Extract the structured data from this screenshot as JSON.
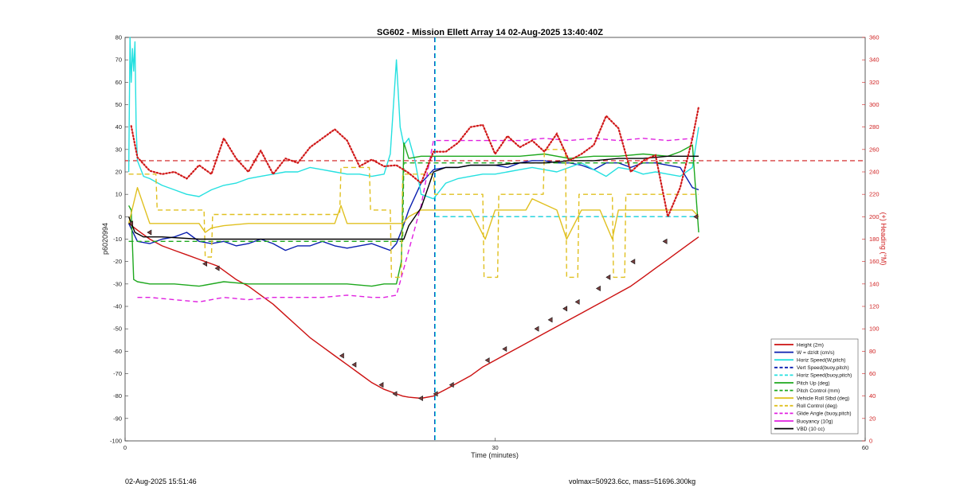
{
  "footer": {
    "left": "02-Aug-2025 15:51:46",
    "right": "volmax=50923.6cc, mass=51696.300kg"
  },
  "chart_data": {
    "type": "line",
    "title": "SG602 - Mission Ellett Array 14 02-Aug-2025 13:40:40Z",
    "xlabel": "Time (minutes)",
    "ylabel": "p6020994",
    "y2label": "(+) Heading (°M)",
    "xlim": [
      0,
      60
    ],
    "ylim": [
      -100,
      80
    ],
    "y2lim": [
      0,
      360
    ],
    "xticks": [
      0,
      30,
      60
    ],
    "yticks": [
      80,
      70,
      60,
      50,
      40,
      30,
      20,
      10,
      0,
      -10,
      -20,
      -30,
      -40,
      -50,
      -60,
      -70,
      -80,
      -90,
      -100
    ],
    "y2ticks": [
      360,
      340,
      320,
      300,
      280,
      260,
      240,
      220,
      200,
      180,
      160,
      140,
      120,
      100,
      80,
      60,
      40,
      20,
      0
    ],
    "grid": false,
    "legend_position": "bottom-right",
    "apogee_x": 25.1,
    "series": [
      {
        "name": "Height (2m)",
        "color": "#cc1111",
        "style": "solid",
        "x": [
          0.3,
          1,
          2,
          3,
          4,
          5,
          6,
          7,
          7.5,
          8,
          9,
          10,
          11,
          12,
          13,
          14,
          15,
          16,
          17,
          18,
          19,
          20,
          21,
          22,
          22.5,
          23,
          24,
          25,
          25.3,
          26,
          27,
          28,
          29,
          30,
          31,
          32,
          33,
          34,
          35,
          36,
          37,
          38,
          39,
          40,
          41,
          42,
          43,
          44,
          45,
          46,
          46.5
        ],
        "y": [
          -3,
          -6,
          -10,
          -13,
          -15,
          -17,
          -19,
          -21,
          -22,
          -24,
          -28,
          -31,
          -35,
          -39,
          -44,
          -49,
          -54,
          -58,
          -62,
          -66,
          -70,
          -74,
          -77,
          -79,
          -80,
          -80.5,
          -81,
          -80,
          -79,
          -77,
          -74,
          -71,
          -67,
          -64,
          -61,
          -58,
          -55,
          -52,
          -49,
          -46,
          -43,
          -40,
          -37,
          -34,
          -31,
          -27,
          -23,
          -19,
          -15,
          -11,
          -9
        ]
      },
      {
        "name": "W = dz/dt (cm/s)",
        "color": "#0a1fb0",
        "style": "solid",
        "x": [
          0.3,
          1,
          2,
          3,
          4,
          5,
          6,
          7,
          8,
          9,
          10,
          11,
          12,
          13,
          14,
          15,
          16,
          17,
          18,
          19,
          20,
          21,
          21.5,
          22,
          22.5,
          23,
          24,
          25,
          26,
          27,
          28,
          29,
          30,
          31,
          32,
          33,
          34,
          35,
          36,
          37,
          38,
          39,
          40,
          41,
          42,
          43,
          44,
          45,
          46,
          46.5
        ],
        "y": [
          -3,
          -11,
          -12,
          -10,
          -9,
          -7,
          -11,
          -12,
          -11,
          -13,
          -12,
          -10,
          -12,
          -15,
          -13,
          -13,
          -11,
          -13,
          -14,
          -13,
          -12,
          -14,
          -15,
          -12,
          -5,
          3,
          15,
          21,
          22,
          22,
          23,
          23,
          23,
          22,
          24,
          25,
          25,
          24,
          24,
          23,
          21,
          24,
          24,
          22,
          24,
          24,
          23,
          22,
          13,
          12
        ]
      },
      {
        "name": "Horiz Speed(W,pitch)",
        "color": "#25e0e0",
        "style": "solid",
        "x": [
          0.3,
          0.4,
          0.5,
          0.6,
          0.7,
          0.8,
          0.9,
          1.0,
          1.5,
          2,
          3,
          4,
          5,
          6,
          7,
          8,
          9,
          10,
          11,
          12,
          13,
          14,
          15,
          16,
          17,
          18,
          19,
          20,
          21,
          21.5,
          22,
          22.3,
          22.6,
          23,
          23.5,
          24,
          25,
          26,
          27,
          28,
          29,
          30,
          31,
          32,
          33,
          34,
          35,
          36,
          37,
          38,
          39,
          40,
          41,
          42,
          43,
          44,
          45,
          46,
          46.5
        ],
        "y": [
          20,
          80,
          60,
          75,
          65,
          78,
          40,
          25,
          18,
          17,
          14,
          12,
          10,
          9,
          12,
          14,
          15,
          17,
          18,
          19,
          20,
          20,
          22,
          21,
          20,
          19,
          19,
          18,
          19,
          28,
          70,
          40,
          32,
          35,
          25,
          10,
          8,
          15,
          17,
          18,
          19,
          19,
          20,
          21,
          22,
          21,
          20,
          22,
          24,
          21,
          18,
          22,
          21,
          19,
          20,
          19,
          18,
          22,
          40
        ]
      },
      {
        "name": "Vert Speed(buoy,pitch)",
        "color": "#0a1fb0",
        "style": "dashed",
        "x": [
          25.1,
          46.5
        ],
        "y": [
          0,
          0
        ]
      },
      {
        "name": "Horiz Speed(buoy,pitch)",
        "color": "#25e0e0",
        "style": "dashed",
        "x": [
          25.1,
          46.5
        ],
        "y": [
          0,
          0
        ]
      },
      {
        "name": "Pitch Up (deg)",
        "color": "#1ea81e",
        "style": "solid",
        "x": [
          0.3,
          0.5,
          0.7,
          1.0,
          2,
          4,
          6,
          8,
          10,
          12,
          14,
          16,
          18,
          20,
          21,
          22,
          22.4,
          22.6,
          23,
          24,
          25,
          26,
          28,
          30,
          32,
          34,
          36,
          38,
          40,
          42,
          44,
          45,
          46,
          46.5
        ],
        "y": [
          5,
          3,
          -28,
          -29,
          -30,
          -30,
          -31,
          -29,
          -30,
          -30,
          -30,
          -30,
          -30,
          -31,
          -30,
          -30,
          -20,
          33,
          26,
          27,
          27,
          27,
          27,
          27,
          27,
          28,
          26,
          27,
          27,
          28,
          27,
          29,
          32,
          -7
        ]
      },
      {
        "name": "Pitch Control (mm)",
        "color": "#1ea81e",
        "style": "dashed",
        "x": [
          0.3,
          22.5,
          22.6,
          46.5
        ],
        "y": [
          -11,
          -11,
          24,
          24
        ]
      },
      {
        "name": "Vehicle Roll Stbd (deg)",
        "color": "#e0c020",
        "style": "solid",
        "x": [
          0.3,
          1,
          2,
          4,
          6,
          6.5,
          7,
          8,
          10,
          12,
          14,
          17,
          17.5,
          18,
          20,
          22,
          22.5,
          23,
          24,
          25,
          26,
          28,
          29.2,
          30,
          31.5,
          32.5,
          33,
          35,
          35.8,
          37,
          38.5,
          39.5,
          40,
          41.5,
          43,
          44,
          45,
          46,
          46.5
        ],
        "y": [
          -3,
          13,
          -3,
          -3,
          -3,
          -7,
          -5,
          -4,
          -3,
          -3,
          -3,
          -3,
          5,
          -3,
          -3,
          -3,
          -3,
          0,
          3,
          3,
          3,
          3,
          -10,
          3,
          3,
          3,
          8,
          3,
          -10,
          3,
          3,
          -10,
          3,
          3,
          3,
          3,
          3,
          3,
          0
        ]
      },
      {
        "name": "Roll Control (deg)",
        "color": "#e0c020",
        "style": "dashed",
        "x": [
          0.3,
          2.5,
          2.6,
          6.4,
          6.5,
          7.0,
          7.1,
          17.4,
          17.5,
          19.8,
          19.9,
          21.5,
          21.6,
          22.4,
          22.5,
          25,
          25.1,
          29,
          29.1,
          30.2,
          30.3,
          33.9,
          34,
          35.7,
          35.8,
          36.7,
          36.8,
          39.5,
          39.6,
          40.5,
          40.6,
          46.5
        ],
        "y": [
          19,
          19,
          3,
          3,
          -18,
          -18,
          1,
          1,
          22,
          22,
          3,
          3,
          -27,
          -27,
          19,
          19,
          10,
          10,
          -27,
          -27,
          10,
          10,
          30,
          30,
          -27,
          -27,
          10,
          10,
          -27,
          -27,
          10,
          10
        ]
      },
      {
        "name": "Glide Angle (buoy,pitch)",
        "color": "#e020e0",
        "style": "dashed",
        "x": [
          1,
          2,
          4,
          6,
          8,
          10,
          12,
          14,
          16,
          18,
          20,
          21,
          22,
          22.5,
          23,
          24,
          25,
          26,
          28,
          30,
          32,
          34,
          36,
          38,
          40,
          42,
          44,
          46
        ],
        "y": [
          -36,
          -36,
          -37,
          -38,
          -36,
          -37,
          -36,
          -36,
          -36,
          -35,
          -36,
          -36,
          -35,
          -25,
          -15,
          5,
          34,
          34,
          34,
          34,
          34,
          35,
          34,
          35,
          34,
          35,
          34,
          35
        ]
      },
      {
        "name": "Buoyancy (10g)",
        "color": "#e020e0",
        "style": "solid",
        "x": [],
        "y": []
      },
      {
        "name": "VBD (10 cc)",
        "color": "#000000",
        "style": "solid",
        "x": [
          0.3,
          0.8,
          1.5,
          3,
          6,
          10,
          15,
          20,
          21.5,
          22.3,
          22.6,
          23,
          24,
          25,
          26,
          27,
          28,
          30,
          32,
          34,
          36,
          38,
          40,
          42,
          44,
          46,
          46.5
        ],
        "y": [
          0,
          -7,
          -9,
          -9,
          -10,
          -10,
          -10,
          -10,
          -10,
          -10,
          -10,
          -4,
          4,
          20,
          22,
          22,
          23,
          23,
          24,
          24,
          25,
          25,
          26,
          26,
          27,
          27,
          27
        ]
      }
    ],
    "heading_series": {
      "name": "(+) Heading (°M)",
      "color": "#d01818",
      "style": "dotted",
      "axis": "right",
      "x": [
        0.5,
        1,
        2,
        3,
        4,
        5,
        6,
        7,
        8,
        9,
        10,
        11,
        12,
        13,
        14,
        15,
        16,
        17,
        18,
        19,
        20,
        21,
        22,
        23,
        24,
        25,
        26,
        27,
        28,
        29,
        30,
        31,
        32,
        33,
        34,
        35,
        36,
        37,
        38,
        39,
        40,
        41,
        42,
        43,
        44,
        45,
        46,
        46.5
      ],
      "y": [
        281,
        253,
        241,
        238,
        240,
        234,
        246,
        238,
        270,
        252,
        240,
        259,
        238,
        252,
        248,
        262,
        270,
        278,
        268,
        245,
        251,
        245,
        246,
        239,
        230,
        258,
        258,
        266,
        280,
        282,
        256,
        272,
        262,
        268,
        258,
        274,
        250,
        256,
        264,
        290,
        279,
        240,
        250,
        255,
        200,
        226,
        270,
        298
      ]
    },
    "reference_lines": [
      {
        "axis": "right",
        "y": 250,
        "color": "#d01818",
        "style": "dashed"
      },
      {
        "axis": "left",
        "x": 25.1,
        "color": "#0a1fb0",
        "style": "dashed"
      },
      {
        "axis": "left",
        "x": 25.15,
        "color": "#25e0e0",
        "style": "dashed"
      }
    ],
    "markers": {
      "x": [
        0.5,
        2,
        6.5,
        7.5,
        17.6,
        18.6,
        20.8,
        21.9,
        24,
        25.2,
        26.5,
        29.4,
        30.8,
        33.4,
        34.5,
        35.7,
        36.7,
        38.4,
        39.2,
        41.2,
        43.8,
        46.3
      ],
      "y": [
        -3,
        -7,
        -21,
        -23,
        -62,
        -66,
        -75,
        -79,
        -81,
        -79,
        -75,
        -64,
        -59,
        -50,
        -46,
        -41,
        -38,
        -32,
        -27,
        -20,
        -11,
        0
      ]
    }
  }
}
